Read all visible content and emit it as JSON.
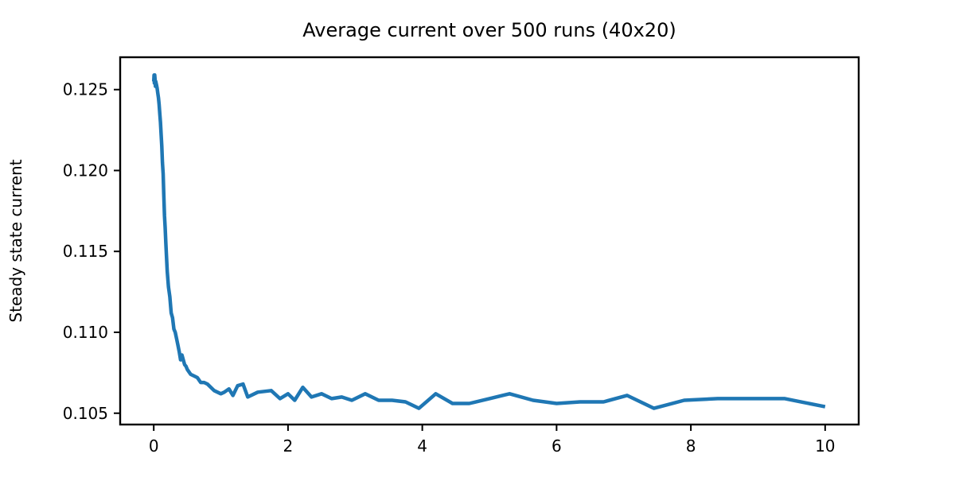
{
  "chart_data": {
    "type": "line",
    "title": "Average current over 500 runs (40x20)",
    "xlabel": "",
    "ylabel": "Steady state current",
    "xlim": [
      -0.5,
      10.5
    ],
    "ylim": [
      0.1043,
      0.127
    ],
    "xticks": [
      0,
      2,
      4,
      6,
      8,
      10
    ],
    "xtick_labels": [
      "0",
      "2",
      "4",
      "6",
      "8",
      "10"
    ],
    "yticks": [
      0.105,
      0.11,
      0.115,
      0.12,
      0.125
    ],
    "ytick_labels": [
      "0.105",
      "0.110",
      "0.115",
      "0.120",
      "0.125"
    ],
    "grid": false,
    "legend": "none",
    "series": [
      {
        "color": "#1f77b4",
        "x": [
          0.0,
          0.005,
          0.01,
          0.015,
          0.02,
          0.025,
          0.03,
          0.04,
          0.05,
          0.06,
          0.07,
          0.08,
          0.09,
          0.1,
          0.11,
          0.12,
          0.13,
          0.14,
          0.15,
          0.16,
          0.17,
          0.18,
          0.19,
          0.2,
          0.22,
          0.24,
          0.26,
          0.28,
          0.3,
          0.32,
          0.34,
          0.36,
          0.38,
          0.4,
          0.42,
          0.44,
          0.46,
          0.48,
          0.5,
          0.55,
          0.6,
          0.65,
          0.7,
          0.75,
          0.8,
          0.9,
          1.0,
          1.05,
          1.12,
          1.18,
          1.25,
          1.33,
          1.4,
          1.55,
          1.75,
          1.88,
          2.0,
          2.1,
          2.22,
          2.35,
          2.5,
          2.65,
          2.8,
          2.95,
          3.15,
          3.35,
          3.55,
          3.75,
          3.95,
          4.2,
          4.45,
          4.7,
          5.0,
          5.3,
          5.65,
          6.0,
          6.35,
          6.7,
          7.05,
          7.45,
          7.9,
          8.4,
          8.9,
          9.4,
          10.0
        ],
        "y": [
          0.1255,
          0.1259,
          0.1254,
          0.1259,
          0.1256,
          0.1252,
          0.1255,
          0.1253,
          0.1251,
          0.1248,
          0.1245,
          0.1241,
          0.1235,
          0.123,
          0.1222,
          0.1215,
          0.1205,
          0.1198,
          0.1185,
          0.1172,
          0.1165,
          0.1155,
          0.1147,
          0.1138,
          0.1128,
          0.1122,
          0.1112,
          0.1109,
          0.1102,
          0.11,
          0.1096,
          0.1092,
          0.1088,
          0.1083,
          0.1086,
          0.1083,
          0.108,
          0.1079,
          0.1077,
          0.1074,
          0.1073,
          0.1072,
          0.1069,
          0.1069,
          0.1068,
          0.1064,
          0.1062,
          0.1063,
          0.1065,
          0.1061,
          0.1067,
          0.1068,
          0.106,
          0.1063,
          0.1064,
          0.1059,
          0.1062,
          0.1058,
          0.1066,
          0.106,
          0.1062,
          0.1059,
          0.106,
          0.1058,
          0.1062,
          0.1058,
          0.1058,
          0.1057,
          0.1053,
          0.1062,
          0.1056,
          0.1056,
          0.1059,
          0.1062,
          0.1058,
          0.1056,
          0.1057,
          0.1057,
          0.1061,
          0.1053,
          0.1058,
          0.1059,
          0.1059,
          0.1059,
          0.1054
        ]
      }
    ]
  }
}
